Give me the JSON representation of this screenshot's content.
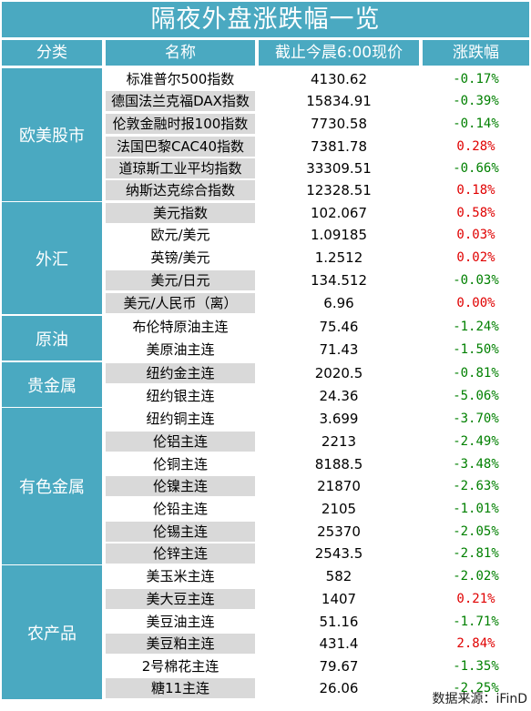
{
  "title": "隔夜外盘涨跌幅一览",
  "headers": {
    "category": "分类",
    "name": "名称",
    "price": "截止今晨6:00现价",
    "change": "涨跌幅"
  },
  "colors": {
    "header_bg": "#4aa9c1",
    "shade": "#d9d9d9",
    "up": "#e00000",
    "down": "#008000"
  },
  "rows": [
    {
      "name": "标准普尔500指数",
      "price": "4130.62",
      "change": "-0.17%"
    },
    {
      "name": "德国法兰克福DAX指数",
      "price": "15834.91",
      "change": "-0.39%"
    },
    {
      "name": "伦敦金融时报100指数",
      "price": "7730.58",
      "change": "-0.14%"
    },
    {
      "name": "法国巴黎CAC40指数",
      "price": "7381.78",
      "change": "0.28%"
    },
    {
      "name": "道琼斯工业平均指数",
      "price": "33309.51",
      "change": "-0.66%"
    },
    {
      "name": "纳斯达克综合指数",
      "price": "12328.51",
      "change": "0.18%"
    },
    {
      "name": "美元指数",
      "price": "102.067",
      "change": "0.58%"
    },
    {
      "name": "欧元/美元",
      "price": "1.09185",
      "change": "0.03%"
    },
    {
      "name": "英镑/美元",
      "price": "1.2512",
      "change": "0.02%"
    },
    {
      "name": "美元/日元",
      "price": "134.512",
      "change": "-0.03%"
    },
    {
      "name": "美元/人民币（离）",
      "price": "6.96",
      "change": "0.00%"
    },
    {
      "name": "布伦特原油主连",
      "price": "75.46",
      "change": "-1.24%"
    },
    {
      "name": "美原油主连",
      "price": "71.43",
      "change": "-1.50%"
    },
    {
      "name": "纽约金主连",
      "price": "2020.5",
      "change": "-0.81%"
    },
    {
      "name": "纽约银主连",
      "price": "24.36",
      "change": "-5.06%"
    },
    {
      "name": "纽约铜主连",
      "price": "3.699",
      "change": "-3.70%"
    },
    {
      "name": "伦铝主连",
      "price": "2213",
      "change": "-2.49%"
    },
    {
      "name": "伦铜主连",
      "price": "8188.5",
      "change": "-3.48%"
    },
    {
      "name": "伦镍主连",
      "price": "21870",
      "change": "-2.63%"
    },
    {
      "name": "伦铅主连",
      "price": "2105",
      "change": "-1.01%"
    },
    {
      "name": "伦锡主连",
      "price": "25370",
      "change": "-2.05%"
    },
    {
      "name": "伦锌主连",
      "price": "2543.5",
      "change": "-2.81%"
    },
    {
      "name": "美玉米主连",
      "price": "582",
      "change": "-2.02%"
    },
    {
      "name": "美大豆主连",
      "price": "1407",
      "change": "0.21%"
    },
    {
      "name": "美豆油主连",
      "price": "51.16",
      "change": "-1.71%"
    },
    {
      "name": "美豆粕主连",
      "price": "431.4",
      "change": "2.84%"
    },
    {
      "name": "2号棉花主连",
      "price": "79.67",
      "change": "-1.35%"
    },
    {
      "name": "糖11主连",
      "price": "26.06",
      "change": "-2.25%"
    }
  ],
  "categories": [
    {
      "label": "欧美股市",
      "count": 6
    },
    {
      "label": "外汇",
      "count": 5
    },
    {
      "label": "原油",
      "count": 2
    },
    {
      "label": "贵金属",
      "count": 2
    },
    {
      "label": "有色金属",
      "count": 7
    },
    {
      "label": "农产品",
      "count": 6
    }
  ],
  "source": "数据来源：iFinD"
}
